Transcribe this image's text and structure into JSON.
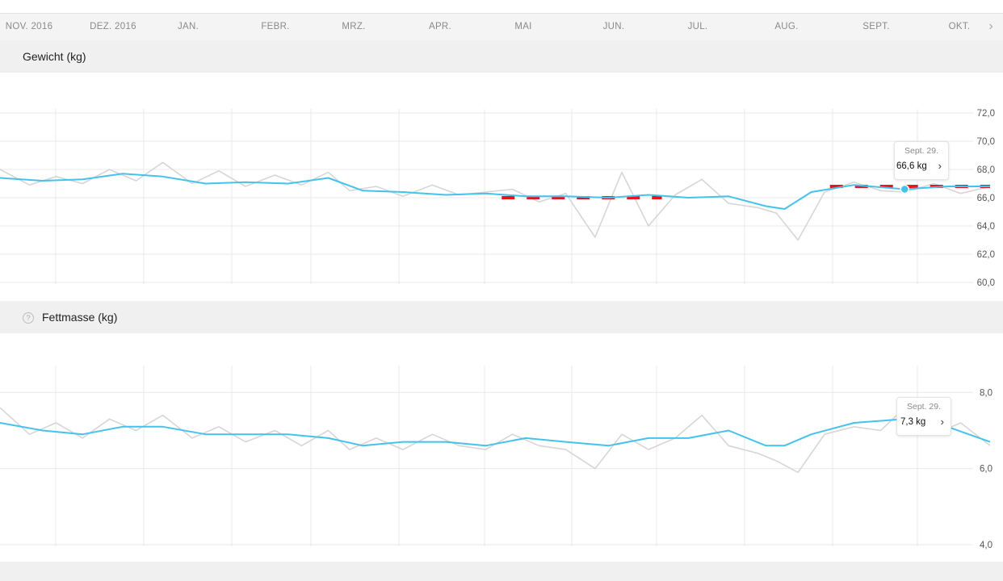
{
  "months": [
    "NOV. 2016",
    "DEZ. 2016",
    "JAN.",
    "FEBR.",
    "MRZ.",
    "APR.",
    "MAI",
    "JUN.",
    "JUL.",
    "AUG.",
    "SEPT.",
    "OKT."
  ],
  "next_icon": "chevron-right-icon",
  "colors": {
    "trend": "#45c2ec",
    "raw": "#d6d6d6",
    "goal": "#e8141e",
    "grid": "#e9e9e9",
    "header_bg": "#f0f0f0"
  },
  "weight": {
    "title": "Gewicht (kg)",
    "tooltip": {
      "date": "Sept. 29.",
      "value": "66,6 kg"
    }
  },
  "fat": {
    "title": "Fettmasse (kg)",
    "help_icon": "question-circle-icon",
    "tooltip": {
      "date": "Sept. 29.",
      "value": "7,3 kg"
    }
  },
  "chart_data": [
    {
      "type": "line",
      "title": "Gewicht (kg)",
      "x_range": [
        "2016-10-25",
        "2017-10-31"
      ],
      "ylim": [
        60,
        72
      ],
      "yticks": [
        "60,0",
        "62,0",
        "64,0",
        "66,0",
        "68,0",
        "70,0",
        "72,0"
      ],
      "grid": true,
      "trend": {
        "x": [
          "2016-10-25",
          "2016-11-10",
          "2016-11-25",
          "2016-12-10",
          "2016-12-25",
          "2017-01-10",
          "2017-01-25",
          "2017-02-10",
          "2017-02-25",
          "2017-03-10",
          "2017-03-25",
          "2017-04-10",
          "2017-04-25",
          "2017-05-10",
          "2017-05-25",
          "2017-06-10",
          "2017-06-25",
          "2017-07-10",
          "2017-07-25",
          "2017-08-08",
          "2017-08-15",
          "2017-08-25",
          "2017-09-10",
          "2017-09-29",
          "2017-10-15",
          "2017-10-31"
        ],
        "y": [
          67.4,
          67.2,
          67.3,
          67.7,
          67.5,
          67.0,
          67.1,
          67.0,
          67.4,
          66.5,
          66.4,
          66.2,
          66.3,
          66.1,
          66.1,
          66.0,
          66.2,
          66.0,
          66.1,
          65.4,
          65.2,
          66.4,
          66.9,
          66.6,
          66.8,
          66.8
        ]
      },
      "measurements": {
        "x": [
          "2016-10-25",
          "2016-11-05",
          "2016-11-15",
          "2016-11-25",
          "2016-12-05",
          "2016-12-15",
          "2016-12-25",
          "2017-01-05",
          "2017-01-15",
          "2017-01-25",
          "2017-02-05",
          "2017-02-15",
          "2017-02-25",
          "2017-03-05",
          "2017-03-15",
          "2017-03-25",
          "2017-04-05",
          "2017-04-15",
          "2017-04-25",
          "2017-05-05",
          "2017-05-15",
          "2017-05-25",
          "2017-06-05",
          "2017-06-15",
          "2017-06-25",
          "2017-07-05",
          "2017-07-15",
          "2017-07-25",
          "2017-08-05",
          "2017-08-12",
          "2017-08-20",
          "2017-08-30",
          "2017-09-10",
          "2017-09-20",
          "2017-09-29",
          "2017-10-10",
          "2017-10-20",
          "2017-10-31"
        ],
        "y": [
          68.0,
          66.9,
          67.5,
          67.0,
          68.0,
          67.2,
          68.5,
          67.0,
          67.9,
          66.8,
          67.6,
          66.9,
          67.8,
          66.5,
          66.8,
          66.1,
          66.9,
          66.2,
          66.4,
          66.6,
          65.7,
          66.3,
          63.2,
          67.8,
          64.0,
          66.2,
          67.3,
          65.6,
          65.3,
          64.9,
          63.0,
          66.4,
          67.1,
          66.5,
          66.4,
          67.0,
          66.3,
          66.8
        ]
      },
      "goal_segments": [
        {
          "x": [
            "2017-05-01",
            "2017-06-30"
          ],
          "y": 66.0
        },
        {
          "x": [
            "2017-09-01",
            "2017-10-31"
          ],
          "y": 66.8
        }
      ],
      "highlight": {
        "x": "2017-09-29",
        "y": 66.6
      }
    },
    {
      "type": "line",
      "title": "Fettmasse (kg)",
      "x_range": [
        "2016-10-25",
        "2017-10-31"
      ],
      "ylim": [
        4,
        8.6
      ],
      "yticks": [
        "4,0",
        "6,0",
        "8,0"
      ],
      "grid": true,
      "trend": {
        "x": [
          "2016-10-25",
          "2016-11-10",
          "2016-11-25",
          "2016-12-10",
          "2016-12-25",
          "2017-01-10",
          "2017-01-25",
          "2017-02-10",
          "2017-02-25",
          "2017-03-10",
          "2017-03-25",
          "2017-04-10",
          "2017-04-25",
          "2017-05-10",
          "2017-05-25",
          "2017-06-10",
          "2017-06-25",
          "2017-07-10",
          "2017-07-25",
          "2017-08-08",
          "2017-08-15",
          "2017-08-25",
          "2017-09-10",
          "2017-09-29",
          "2017-10-15",
          "2017-10-31"
        ],
        "y": [
          7.2,
          7.0,
          6.9,
          7.1,
          7.1,
          6.9,
          6.9,
          6.9,
          6.8,
          6.6,
          6.7,
          6.7,
          6.6,
          6.8,
          6.7,
          6.6,
          6.8,
          6.8,
          7.0,
          6.6,
          6.6,
          6.9,
          7.2,
          7.3,
          7.1,
          6.7
        ]
      },
      "measurements": {
        "x": [
          "2016-10-25",
          "2016-11-05",
          "2016-11-15",
          "2016-11-25",
          "2016-12-05",
          "2016-12-15",
          "2016-12-25",
          "2017-01-05",
          "2017-01-15",
          "2017-01-25",
          "2017-02-05",
          "2017-02-15",
          "2017-02-25",
          "2017-03-05",
          "2017-03-15",
          "2017-03-25",
          "2017-04-05",
          "2017-04-15",
          "2017-04-25",
          "2017-05-05",
          "2017-05-15",
          "2017-05-25",
          "2017-06-05",
          "2017-06-15",
          "2017-06-25",
          "2017-07-05",
          "2017-07-15",
          "2017-07-25",
          "2017-08-05",
          "2017-08-12",
          "2017-08-20",
          "2017-08-30",
          "2017-09-10",
          "2017-09-20",
          "2017-09-29",
          "2017-10-10",
          "2017-10-20",
          "2017-10-31"
        ],
        "y": [
          7.6,
          6.9,
          7.2,
          6.8,
          7.3,
          7.0,
          7.4,
          6.8,
          7.1,
          6.7,
          7.0,
          6.6,
          7.0,
          6.5,
          6.8,
          6.5,
          6.9,
          6.6,
          6.5,
          6.9,
          6.6,
          6.5,
          6.0,
          6.9,
          6.5,
          6.8,
          7.4,
          6.6,
          6.4,
          6.2,
          5.9,
          6.9,
          7.1,
          7.0,
          7.6,
          6.9,
          7.2,
          6.6
        ]
      },
      "highlight": {
        "x": "2017-09-29",
        "y": 7.3
      }
    }
  ]
}
